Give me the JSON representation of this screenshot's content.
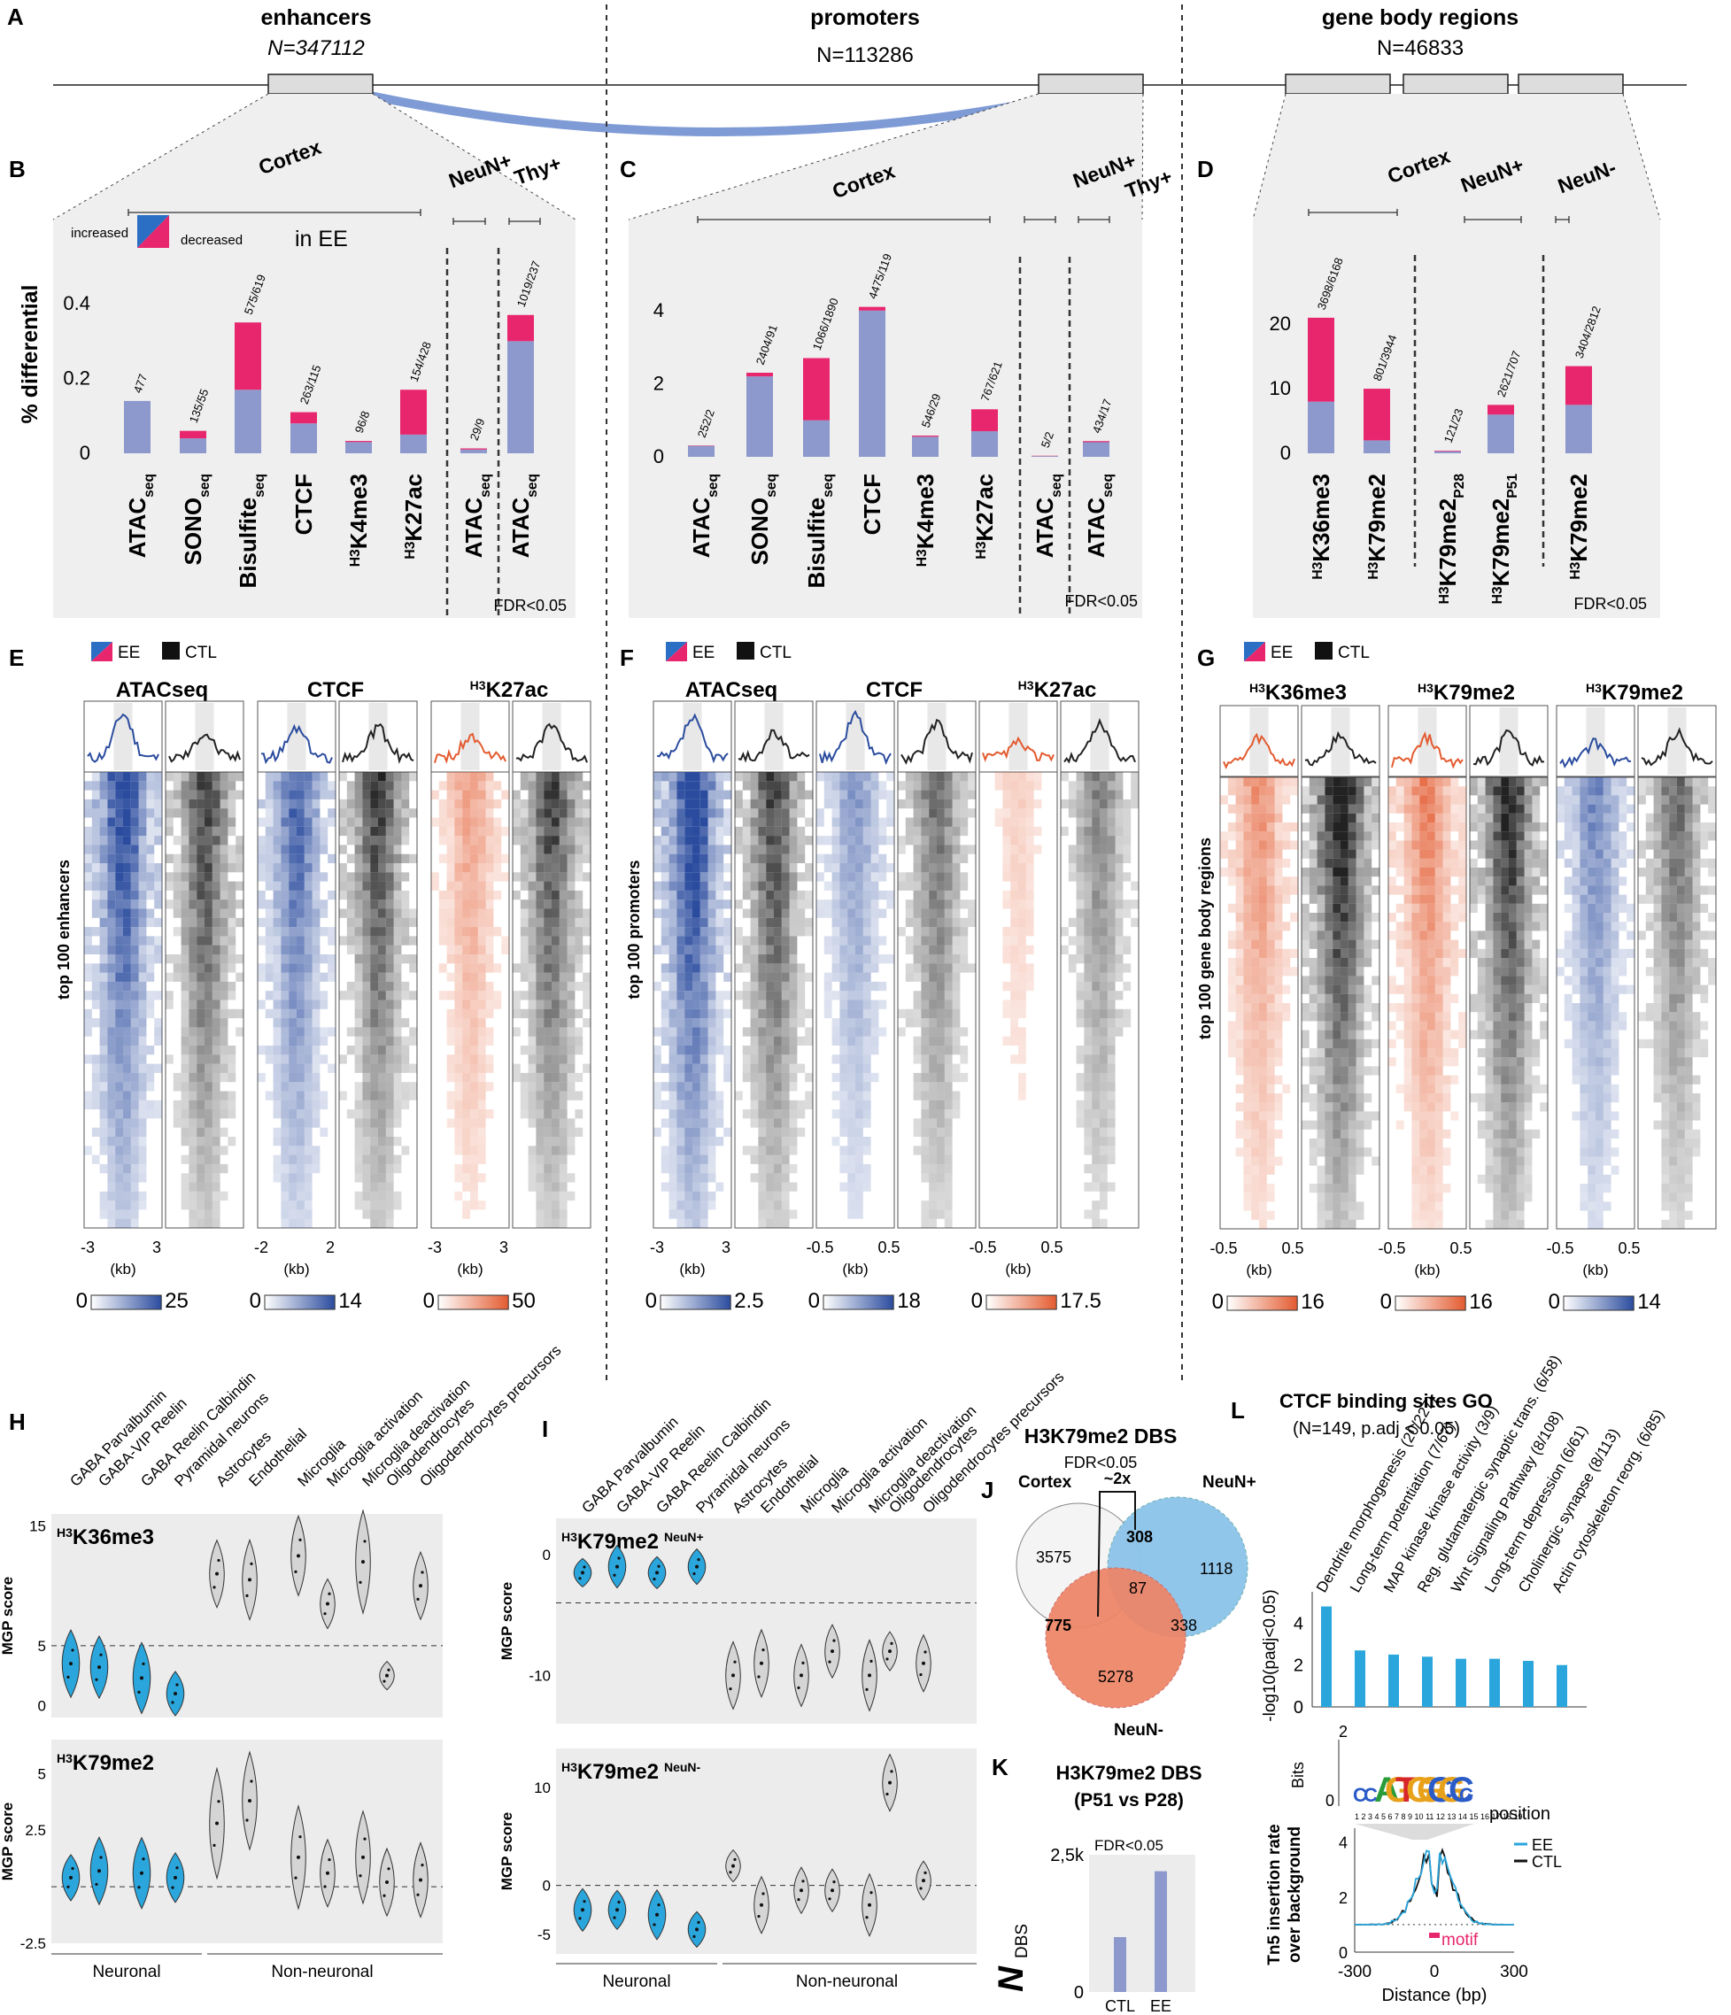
{
  "colors": {
    "blue": "#8d98cc",
    "pink": "#e8266d",
    "loop": "#7f9bd6",
    "gray": "#ececec",
    "heatBlue": "#2b4c9e",
    "heatRed": "#e35b30",
    "violinBlue": "#2aa6dc",
    "violinGray": "#d5d5d5",
    "goBar": "#2aa6dc",
    "vennBlue": "#8cc4ea",
    "vennRed": "#ee8466"
  },
  "panelA": {
    "letter": "A",
    "enhancers": {
      "title": "enhancers",
      "n": "N=347112"
    },
    "promoters": {
      "title": "promoters",
      "n": "N=113286"
    },
    "gene_body": {
      "title": "gene body regions",
      "n": "N=46833"
    }
  },
  "legend": {
    "increased": "increased",
    "decreased": "decreased",
    "in_ee": "in EE",
    "ylabel": "% differential",
    "fdr": "FDR<0.05"
  },
  "panelB": {
    "letter": "B",
    "groups": [
      "Cortex",
      "NeuN+",
      "Thy+"
    ],
    "chart_data": {
      "type": "bar",
      "ylabel": "% differential",
      "ylim": [
        0,
        0.45
      ],
      "yticks": [
        "0",
        "0.2",
        "0.4"
      ],
      "categories": [
        "ATACseq",
        "SONOseq",
        "Bisulfiteseq",
        "CTCF",
        "H3K4me3",
        "H3K27ac",
        "ATACseq",
        "ATACseq"
      ],
      "series": [
        {
          "name": "increased",
          "values": [
            0.14,
            0.04,
            0.17,
            0.08,
            0.03,
            0.05,
            0.01,
            0.3
          ]
        },
        {
          "name": "decreased",
          "values": [
            0,
            0.02,
            0.18,
            0.03,
            0.003,
            0.12,
            0.003,
            0.07
          ]
        }
      ],
      "labels": [
        "477",
        "135/55",
        "575/619",
        "263/115",
        "96/8",
        "154/428",
        "29/9",
        "1019/237"
      ]
    }
  },
  "panelC": {
    "letter": "C",
    "groups": [
      "Cortex",
      "NeuN+",
      "Thy+"
    ],
    "chart_data": {
      "type": "bar",
      "ylabel": "% differential",
      "ylim": [
        0,
        4.6
      ],
      "yticks": [
        "0",
        "2",
        "4"
      ],
      "categories": [
        "ATACseq",
        "SONOseq",
        "Bisulfiteseq",
        "CTCF",
        "H3K4me3",
        "H3K27ac",
        "ATACseq",
        "ATACseq"
      ],
      "series": [
        {
          "name": "increased",
          "values": [
            0.3,
            2.2,
            1.0,
            4.0,
            0.55,
            0.7,
            0.02,
            0.4
          ]
        },
        {
          "name": "decreased",
          "values": [
            0.01,
            0.1,
            1.7,
            0.1,
            0.03,
            0.6,
            0.01,
            0.03
          ]
        }
      ],
      "labels": [
        "252/2",
        "2404/91",
        "1066/1890",
        "4475/119",
        "546/29",
        "767/621",
        "5/2",
        "434/17"
      ]
    }
  },
  "panelD": {
    "letter": "D",
    "groups": [
      "Cortex",
      "NeuN+",
      "NeuN-"
    ],
    "chart_data": {
      "type": "bar",
      "ylabel": "% differential",
      "ylim": [
        0,
        24
      ],
      "yticks": [
        "0",
        "10",
        "20"
      ],
      "categories": [
        "H3K36me3",
        "H3K79me2",
        "H3K79me2P28",
        "H3K79me2P51",
        "H3K79me2"
      ],
      "series": [
        {
          "name": "increased",
          "values": [
            8,
            2,
            0.3,
            6,
            7.5
          ]
        },
        {
          "name": "decreased",
          "values": [
            13,
            8,
            0.1,
            1.5,
            6
          ]
        }
      ],
      "labels": [
        "3698/6168",
        "801/3944",
        "121/23",
        "2621/707",
        "3404/2812"
      ]
    }
  },
  "heat": {
    "ee": "EE",
    "ctl": "CTL",
    "kb": "(kb)",
    "E": {
      "letter": "E",
      "ylabel": "top 100 enhancers",
      "tracks": [
        "ATACseq",
        "CTCF",
        "H3K27ac"
      ],
      "ranges": [
        [
          "-3",
          "3"
        ],
        [
          "-2",
          "2"
        ],
        [
          "-3",
          "3"
        ]
      ],
      "scales": [
        [
          "0",
          "25"
        ],
        [
          "0",
          "14"
        ],
        [
          "0",
          "50"
        ]
      ]
    },
    "F": {
      "letter": "F",
      "ylabel": "top 100 promoters",
      "tracks": [
        "ATACseq",
        "CTCF",
        "H3K27ac"
      ],
      "ranges": [
        [
          "-3",
          "3"
        ],
        [
          "-0.5",
          "0.5"
        ],
        [
          "-0.5",
          "0.5"
        ]
      ],
      "scales": [
        [
          "0",
          "2.5"
        ],
        [
          "0",
          "18"
        ],
        [
          "0",
          "17.5"
        ]
      ]
    },
    "G": {
      "letter": "G",
      "ylabel": "top 100 gene body regions",
      "tracks": [
        "H3K36me3",
        "H3K79me2",
        "H3K79me2"
      ],
      "ranges": [
        [
          "-0.5",
          "0.5"
        ],
        [
          "-0.5",
          "0.5"
        ],
        [
          "-0.5",
          "0.5"
        ]
      ],
      "scales": [
        [
          "0",
          "16"
        ],
        [
          "0",
          "16"
        ],
        [
          "0",
          "14"
        ]
      ]
    }
  },
  "cellTypes": [
    "GABA Parvalbumin",
    "GABA-VIP Reelin",
    "GABA Reelin Calbindin",
    "Pyramidal neurons",
    "Astrocytes",
    "Endothelial",
    "Microglia",
    "Microglia activation",
    "Microglia deactivation",
    "Oligodendrocytes",
    "Oligodendrocytes precursors"
  ],
  "panelH": {
    "letter": "H",
    "ylabel": "MGP score",
    "neuronal": "Neuronal",
    "nonneuronal": "Non-neuronal",
    "top": {
      "title": "H3K36me3",
      "ylim": [
        -1,
        16
      ],
      "yticks": [
        "15",
        "5",
        "0"
      ],
      "baseline": 5,
      "medians": [
        3.5,
        3.2,
        2.3,
        1.0,
        11,
        10.5,
        12.5,
        8.5,
        12,
        2.5,
        10
      ]
    },
    "bottom": {
      "title": "H3K79me2",
      "ylim": [
        -2.5,
        6.5
      ],
      "yticks": [
        "5",
        "2.5",
        "-2.5"
      ],
      "baseline": 0,
      "medians": [
        0.4,
        0.7,
        0.6,
        0.4,
        2.8,
        3.8,
        1.3,
        0.6,
        1.3,
        0.2,
        0.3
      ]
    }
  },
  "panelI": {
    "letter": "I",
    "ylabel": "MGP score",
    "neuronal": "Neuronal",
    "nonneuronal": "Non-neuronal",
    "top": {
      "title": "H3K79me2",
      "sub": "NeuN+",
      "ylim": [
        -14,
        3
      ],
      "yticks": [
        "0",
        "-10"
      ],
      "baseline": -4,
      "medians": [
        -1.5,
        -1,
        -1.5,
        -1,
        -10,
        -9,
        -10,
        -8,
        -10,
        -8,
        -9
      ]
    },
    "bottom": {
      "title": "H3K79me2",
      "sub": "NeuN-",
      "ylim": [
        -7,
        14
      ],
      "yticks": [
        "10",
        "0",
        "-5"
      ],
      "baseline": 0,
      "medians": [
        -2.5,
        -2.5,
        -3,
        -4.5,
        2,
        -2,
        -0.5,
        -0.5,
        -2,
        10.5,
        0.5
      ]
    }
  },
  "panelJ": {
    "letter": "J",
    "title": "H3K79me2  DBS",
    "fdr": "FDR<0.05",
    "fold": "~2x",
    "sets": [
      "Cortex",
      "NeuN+",
      "NeuN-"
    ],
    "counts": [
      "3575",
      "308",
      "1118",
      "87",
      "775",
      "338",
      "5278"
    ]
  },
  "panelK": {
    "letter": "K",
    "title": "H3K79me2  DBS",
    "subtitle": "(P51 vs P28)",
    "fdr": "FDR<0.05",
    "ylabel": "N",
    "ysub": "DBS",
    "chart_data": {
      "type": "bar",
      "categories": [
        "CTL",
        "EE"
      ],
      "values": [
        1000,
        2200
      ],
      "ylim": [
        0,
        2500
      ],
      "yticks": [
        "0",
        "2,5k"
      ]
    }
  },
  "panelL": {
    "letter": "L",
    "title": "CTCF binding sites GO",
    "subtitle": "(N=149, p.adj < 0.05)",
    "ylabel": "-log10(padj<0.05)",
    "chart_data": {
      "type": "bar",
      "categories": [
        "Dendrite morphogenesis (20/227)",
        "Long-term potentiation (7/67)",
        "MAP kinase kinase activity (3/9)",
        "Reg. glutamatergic synaptic trans. (6/58)",
        "Wnt Signaling Pathway (8/108)",
        "Long-term depression (6/61)",
        "Cholinergic synapse (8/113)",
        "Actin cytoskeleton reorg. (6/85)"
      ],
      "values": [
        4.8,
        2.7,
        2.5,
        2.4,
        2.3,
        2.3,
        2.2,
        2.0
      ],
      "ylim": [
        0,
        5.5
      ],
      "yticks": [
        "0",
        "2",
        "4"
      ]
    },
    "motif": {
      "bits": "Bits",
      "two": "2",
      "zero": "0",
      "positions": "1 2 3 4 5 6 7 8 9 10 11 12 13 14 15 16 17 18 19",
      "position_label": "position"
    },
    "tn5": {
      "ylabel1": "Tn5 insertion rate",
      "ylabel2": "over background",
      "xlabel": "Distance (bp)",
      "xticks": [
        "-300",
        "0",
        "300"
      ],
      "yticks": [
        "0",
        "2",
        "4"
      ],
      "motif": "motif",
      "legend": [
        "EE",
        "CTL"
      ]
    }
  }
}
